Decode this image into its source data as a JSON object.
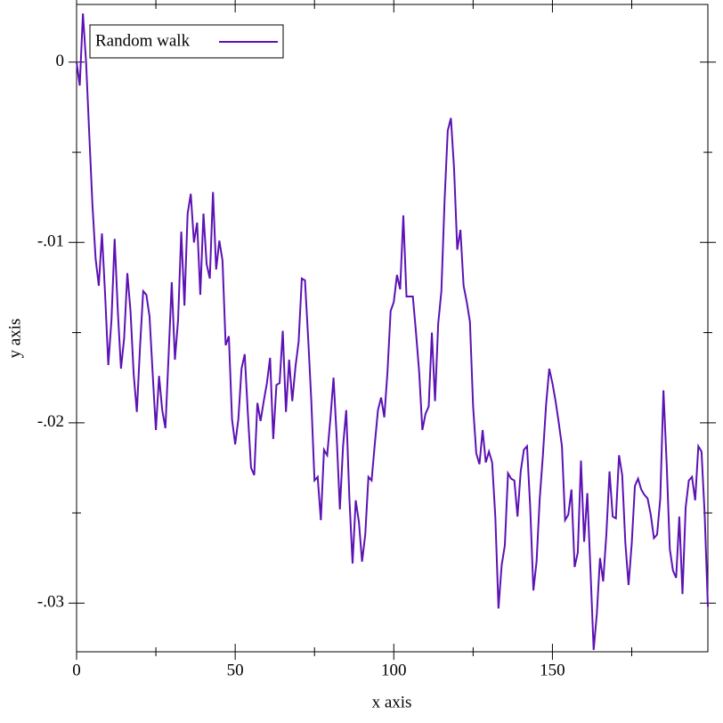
{
  "chart_data": {
    "type": "line",
    "x_label": "x axis",
    "y_label": "y axis",
    "legend": "top-left",
    "x": [
      0,
      1,
      2,
      3,
      4,
      5,
      6,
      7,
      8,
      9,
      10,
      11,
      12,
      13,
      14,
      15,
      16,
      17,
      18,
      19,
      20,
      21,
      22,
      23,
      24,
      25,
      26,
      27,
      28,
      29,
      30,
      31,
      32,
      33,
      34,
      35,
      36,
      37,
      38,
      39,
      40,
      41,
      42,
      43,
      44,
      45,
      46,
      47,
      48,
      49,
      50,
      51,
      52,
      53,
      54,
      55,
      56,
      57,
      58,
      59,
      60,
      61,
      62,
      63,
      64,
      65,
      66,
      67,
      68,
      69,
      70,
      71,
      72,
      73,
      74,
      75,
      76,
      77,
      78,
      79,
      80,
      81,
      82,
      83,
      84,
      85,
      86,
      87,
      88,
      89,
      90,
      91,
      92,
      93,
      94,
      95,
      96,
      97,
      98,
      99,
      100,
      101,
      102,
      103,
      104,
      105,
      106,
      107,
      108,
      109,
      110,
      111,
      112,
      113,
      114,
      115,
      116,
      117,
      118,
      119,
      120,
      121,
      122,
      123,
      124,
      125,
      126,
      127,
      128,
      129,
      130,
      131,
      132,
      133,
      134,
      135,
      136,
      137,
      138,
      139,
      140,
      141,
      142,
      143,
      144,
      145,
      146,
      147,
      148,
      149,
      150,
      151,
      152,
      153,
      154,
      155,
      156,
      157,
      158,
      159,
      160,
      161,
      162,
      163,
      164,
      165,
      166,
      167,
      168,
      169,
      170,
      171,
      172,
      173,
      174,
      175,
      176,
      177,
      178,
      179,
      180,
      181,
      182,
      183,
      184,
      185,
      186,
      187,
      188,
      189,
      190,
      191,
      192,
      193,
      194,
      195,
      196,
      197,
      198,
      199
    ],
    "series": [
      {
        "name": "Random walk",
        "color": "#5c12b4",
        "values": [
          0,
          -0.0013,
          0.0027,
          0,
          -0.004,
          -0.0079,
          -0.0109,
          -0.0124,
          -0.0095,
          -0.0129,
          -0.0168,
          -0.0143,
          -0.0098,
          -0.0138,
          -0.017,
          -0.0153,
          -0.0117,
          -0.0138,
          -0.0173,
          -0.0194,
          -0.0158,
          -0.0127,
          -0.0129,
          -0.0141,
          -0.0173,
          -0.0204,
          -0.0174,
          -0.0193,
          -0.0203,
          -0.0163,
          -0.0122,
          -0.0165,
          -0.0143,
          -0.0094,
          -0.0135,
          -0.0084,
          -0.0073,
          -0.01,
          -0.0089,
          -0.0129,
          -0.0084,
          -0.0112,
          -0.012,
          -0.0072,
          -0.0115,
          -0.0099,
          -0.011,
          -0.0157,
          -0.0152,
          -0.0198,
          -0.0212,
          -0.0198,
          -0.017,
          -0.0162,
          -0.0195,
          -0.0225,
          -0.0229,
          -0.0189,
          -0.0199,
          -0.0188,
          -0.0178,
          -0.0164,
          -0.0209,
          -0.0179,
          -0.0178,
          -0.0149,
          -0.0194,
          -0.0165,
          -0.0188,
          -0.0169,
          -0.0155,
          -0.012,
          -0.0121,
          -0.0153,
          -0.0188,
          -0.0232,
          -0.023,
          -0.0254,
          -0.0215,
          -0.0218,
          -0.0198,
          -0.0175,
          -0.0208,
          -0.0248,
          -0.0213,
          -0.0193,
          -0.0242,
          -0.0278,
          -0.0243,
          -0.0255,
          -0.0277,
          -0.0262,
          -0.023,
          -0.0232,
          -0.0212,
          -0.0193,
          -0.0186,
          -0.0197,
          -0.0172,
          -0.0138,
          -0.0133,
          -0.0118,
          -0.0126,
          -0.0085,
          -0.013,
          -0.013,
          -0.013,
          -0.015,
          -0.0172,
          -0.0204,
          -0.0195,
          -0.0191,
          -0.015,
          -0.0188,
          -0.0145,
          -0.0127,
          -0.0077,
          -0.0038,
          -0.0031,
          -0.0059,
          -0.0104,
          -0.0093,
          -0.0124,
          -0.0133,
          -0.0144,
          -0.0191,
          -0.0217,
          -0.0223,
          -0.0204,
          -0.0222,
          -0.0216,
          -0.0222,
          -0.0252,
          -0.0303,
          -0.0279,
          -0.0268,
          -0.0228,
          -0.0231,
          -0.0232,
          -0.0252,
          -0.0227,
          -0.0215,
          -0.0213,
          -0.0247,
          -0.0293,
          -0.0277,
          -0.0242,
          -0.0218,
          -0.019,
          -0.017,
          -0.0178,
          -0.0188,
          -0.02,
          -0.0213,
          -0.0254,
          -0.0251,
          -0.0237,
          -0.028,
          -0.0272,
          -0.0221,
          -0.0266,
          -0.0239,
          -0.0282,
          -0.0326,
          -0.0306,
          -0.0275,
          -0.0288,
          -0.0262,
          -0.0227,
          -0.0252,
          -0.0253,
          -0.0218,
          -0.0229,
          -0.0267,
          -0.029,
          -0.0267,
          -0.0235,
          -0.0231,
          -0.0237,
          -0.024,
          -0.0242,
          -0.0251,
          -0.0264,
          -0.0262,
          -0.0242,
          -0.0182,
          -0.0222,
          -0.027,
          -0.0282,
          -0.0286,
          -0.0252,
          -0.0295,
          -0.0247,
          -0.0232,
          -0.023,
          -0.0243,
          -0.0213,
          -0.0216,
          -0.0251,
          -0.0302
        ]
      }
    ],
    "xlim": [
      0,
      199
    ],
    "ylim": [
      -0.0327,
      0.0032
    ],
    "xticks": [
      0,
      50,
      100,
      150
    ],
    "xminorticks": [
      25,
      75,
      125,
      175
    ],
    "yticks": [
      0,
      {
        "value": -0.01,
        "label": "-.01"
      },
      {
        "value": -0.02,
        "label": "-.02"
      },
      {
        "value": -0.03,
        "label": "-.03"
      }
    ],
    "yminorticks": [
      -0.005,
      -0.015,
      -0.025
    ]
  }
}
